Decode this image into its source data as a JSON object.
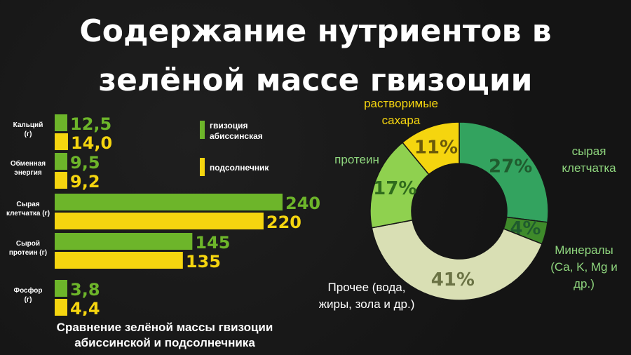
{
  "title_line1": "Содержание нутриентов в",
  "title_line2": "зелёной массе гвизоции",
  "caption_line1": "Сравнение зелёной массы гвизоции",
  "caption_line2": "абиссинской и подсолнечника",
  "colors": {
    "series1": "#6DB52A",
    "series2": "#F5D50F",
    "background": "#161616"
  },
  "chart_data": [
    {
      "type": "bar",
      "orientation": "horizontal",
      "categories": [
        [
          "Кальций",
          "(г)"
        ],
        [
          "Обменная",
          "энергия"
        ],
        [
          "Сырая",
          "клетчатка (г)"
        ],
        [
          "Сырой",
          "протеин (г)"
        ],
        [
          "Фосфор",
          "(г)"
        ]
      ],
      "value_labels": [
        [
          "12,5",
          "14,0"
        ],
        [
          "9,5",
          "9,2"
        ],
        [
          "240",
          "220"
        ],
        [
          "145",
          "135"
        ],
        [
          "3,8",
          "4,4"
        ]
      ],
      "series": [
        {
          "name": [
            "гвизоция",
            "абиссинская"
          ],
          "values": [
            12.5,
            9.5,
            240,
            145,
            3.8
          ],
          "color": "#6DB52A"
        },
        {
          "name": [
            "подсолнечник"
          ],
          "values": [
            14.0,
            9.2,
            220,
            135,
            4.4
          ],
          "color": "#F5D50F"
        }
      ],
      "xlim": [
        0,
        240
      ],
      "legend_position": "top-right"
    },
    {
      "type": "pie",
      "style": "donut",
      "slices": [
        {
          "label": [
            "сырая",
            "клетчатка"
          ],
          "value": 27,
          "pct_label": "27%",
          "color": "#33A35F",
          "label_color": "#8FD67E",
          "pct_color": "#1F5B2E"
        },
        {
          "label": [
            "Минералы",
            "(Ca, K, Mg и",
            "др.)"
          ],
          "value": 4,
          "pct_label": "4%",
          "color": "#3E8A2A",
          "label_color": "#8FD67E",
          "pct_color": "#1F5B2E"
        },
        {
          "label": [
            "Прочее (вода,",
            "жиры, зола и др.)"
          ],
          "value": 41,
          "pct_label": "41%",
          "color": "#D9DFB4",
          "label_color": "#FFFFFF",
          "pct_color": "#6B7345"
        },
        {
          "label": [
            "протеин"
          ],
          "value": 17,
          "pct_label": "17%",
          "color": "#8FD14F",
          "label_color": "#8FD67E",
          "pct_color": "#2F6B1C"
        },
        {
          "label": [
            "растворимые",
            "сахара"
          ],
          "value": 11,
          "pct_label": "11%",
          "color": "#F5D50F",
          "label_color": "#F5D50F",
          "pct_color": "#6B5A0A"
        }
      ]
    }
  ]
}
